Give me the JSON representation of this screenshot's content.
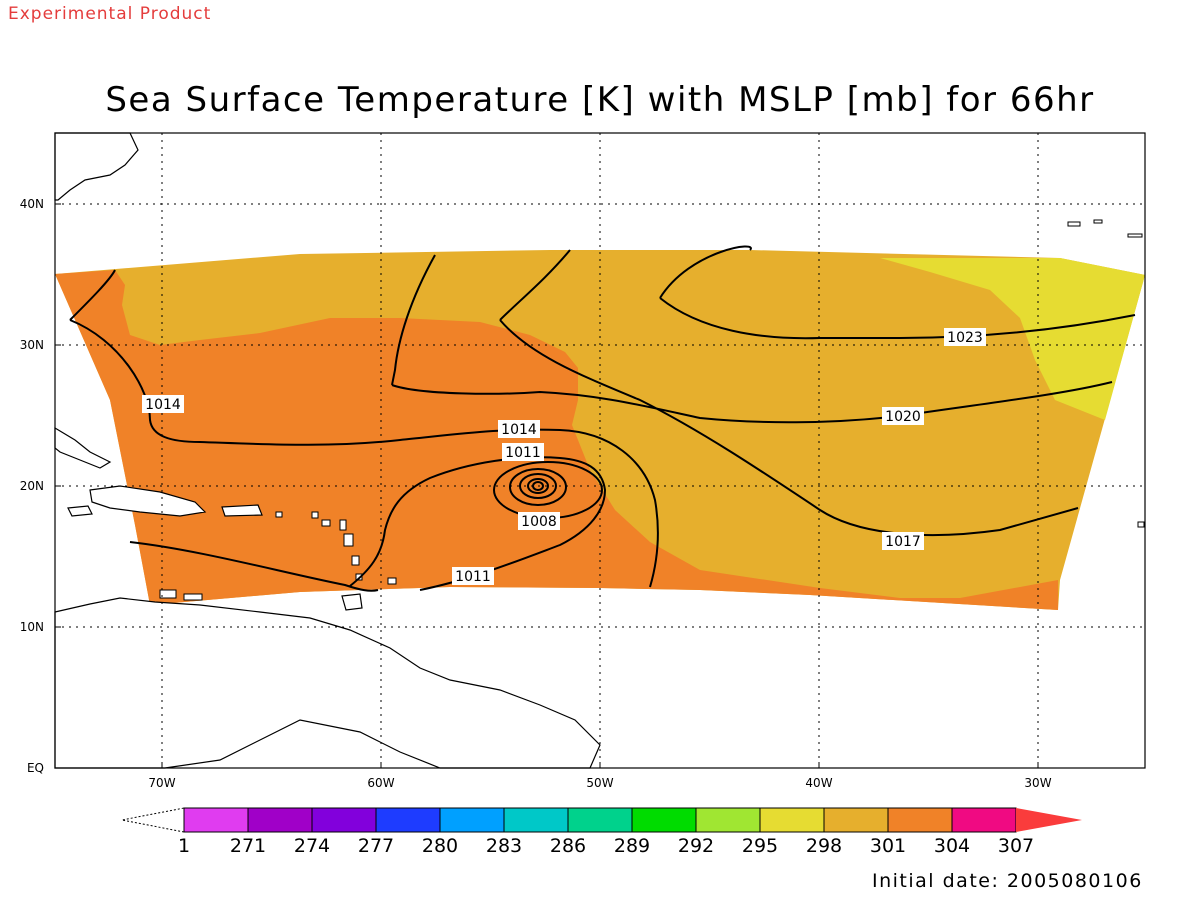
{
  "header": {
    "badge": "Experimental Product",
    "title": "Sea Surface Temperature [K] with MSLP [mb] for 66hr"
  },
  "map": {
    "lat_labels": [
      "EQ",
      "10N",
      "20N",
      "30N",
      "40N"
    ],
    "lon_labels": [
      "70W",
      "60W",
      "50W",
      "40W",
      "30W"
    ],
    "grid": "dotted",
    "contour_labels": [
      "1023",
      "1020",
      "1017",
      "1014",
      "1014",
      "1011",
      "1011",
      "1008"
    ]
  },
  "colorbar": {
    "labels": [
      "1",
      "271",
      "274",
      "277",
      "280",
      "283",
      "286",
      "289",
      "292",
      "295",
      "298",
      "301",
      "304",
      "307"
    ],
    "colors": [
      "#e03cf0",
      "#a000c8",
      "#8200dc",
      "#1e3cff",
      "#00a0ff",
      "#00c8c8",
      "#00d28c",
      "#00dc00",
      "#a0e632",
      "#e6dc32",
      "#e6af2d",
      "#f08228",
      "#f00a82",
      "#fa3c3c"
    ]
  },
  "footer": {
    "initial_date": "Initial date: 2005080106"
  }
}
